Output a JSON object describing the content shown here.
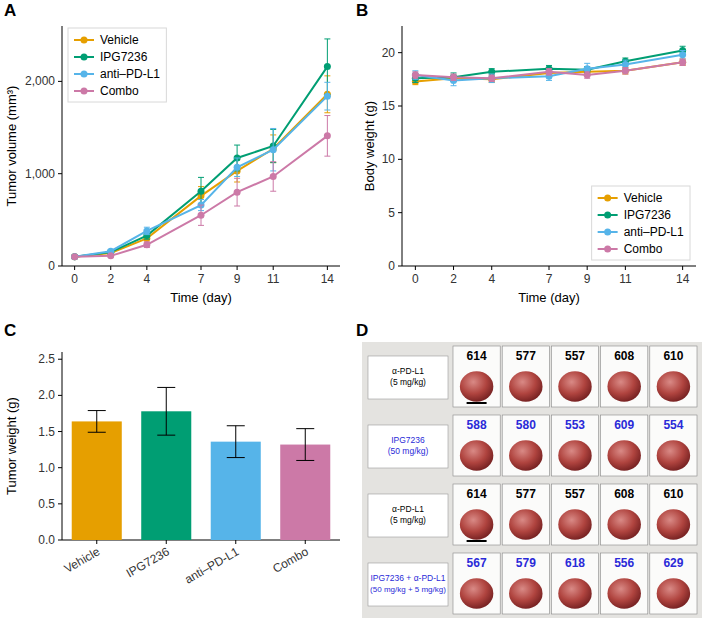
{
  "chart_data": [
    {
      "panel": "A",
      "type": "line",
      "x_label": "Time (day)",
      "y_label": "Tumor volume (mm³)",
      "x": [
        0,
        2,
        4,
        7,
        9,
        11,
        14
      ],
      "xlim": [
        -0.7,
        14.7
      ],
      "xticks": [
        0,
        2,
        4,
        7,
        9,
        11,
        14
      ],
      "ylim": [
        0,
        2600
      ],
      "yticks": [
        0,
        {
          "value": 1000,
          "label": "1,000"
        },
        {
          "value": 2000,
          "label": "2,000"
        }
      ],
      "legend": "top-left",
      "marker": "circle",
      "series": [
        {
          "name": "Vehicle",
          "color": "#e69f00",
          "values": [
            100,
            140,
            300,
            760,
            1030,
            1270,
            1860
          ],
          "errors": [
            10,
            20,
            40,
            100,
            120,
            150,
            200
          ]
        },
        {
          "name": "IPG7236",
          "color": "#009e73",
          "values": [
            100,
            150,
            330,
            810,
            1170,
            1300,
            2160
          ],
          "errors": [
            10,
            20,
            40,
            150,
            140,
            180,
            300
          ]
        },
        {
          "name": "anti–PD-L1",
          "color": "#56b4e9",
          "values": [
            100,
            160,
            380,
            660,
            1070,
            1260,
            1840
          ],
          "errors": [
            10,
            20,
            40,
            60,
            100,
            230,
            150
          ]
        },
        {
          "name": "Combo",
          "color": "#cc79a7",
          "values": [
            100,
            110,
            230,
            550,
            800,
            970,
            1410
          ],
          "errors": [
            10,
            15,
            30,
            110,
            150,
            160,
            220
          ]
        }
      ]
    },
    {
      "panel": "B",
      "type": "line",
      "x_label": "Time (day)",
      "y_label": "Body weight (g)",
      "x": [
        0,
        2,
        4,
        7,
        9,
        11,
        14
      ],
      "xlim": [
        -0.7,
        14.7
      ],
      "xticks": [
        0,
        2,
        4,
        7,
        9,
        11,
        14
      ],
      "ylim": [
        0,
        22.5
      ],
      "yticks": [
        0,
        5,
        10,
        15,
        20
      ],
      "legend": "bottom-right",
      "marker": "circle",
      "series": [
        {
          "name": "Vehicle",
          "color": "#e69f00",
          "values": [
            17.3,
            17.6,
            17.5,
            18.1,
            18.2,
            18.3,
            19.1
          ],
          "errors": [
            0.3,
            0.3,
            0.3,
            0.3,
            0.3,
            0.3,
            0.3
          ]
        },
        {
          "name": "IPG7236",
          "color": "#009e73",
          "values": [
            17.6,
            17.7,
            18.2,
            18.5,
            18.4,
            19.2,
            20.2
          ],
          "errors": [
            0.4,
            0.4,
            0.3,
            0.3,
            0.3,
            0.3,
            0.4
          ]
        },
        {
          "name": "anti–PD-L1",
          "color": "#56b4e9",
          "values": [
            17.9,
            17.4,
            17.6,
            17.8,
            18.5,
            18.9,
            19.8
          ],
          "errors": [
            0.4,
            0.5,
            0.4,
            0.4,
            0.5,
            0.4,
            0.4
          ]
        },
        {
          "name": "Combo",
          "color": "#cc79a7",
          "values": [
            17.9,
            17.7,
            17.6,
            18.2,
            17.9,
            18.3,
            19.1
          ],
          "errors": [
            0.3,
            0.3,
            0.3,
            0.3,
            0.3,
            0.3,
            0.3
          ]
        }
      ]
    },
    {
      "panel": "C",
      "type": "bar",
      "y_label": "Tumor weight (g)",
      "categories": [
        "Vehicle",
        "IPG7236",
        "anti–PD-L1",
        "Combo"
      ],
      "values": [
        1.64,
        1.78,
        1.36,
        1.32
      ],
      "errors": [
        0.15,
        0.33,
        0.22,
        0.22
      ],
      "colors": [
        "#e69f00",
        "#009e73",
        "#56b4e9",
        "#cc79a7"
      ],
      "ylim": [
        0,
        2.6
      ],
      "yticks": [
        {
          "value": 0,
          "label": "0.0"
        },
        {
          "value": 0.5,
          "label": "0.5"
        },
        {
          "value": 1,
          "label": "1.0"
        },
        {
          "value": 1.5,
          "label": "1.5"
        },
        {
          "value": 2,
          "label": "2.0"
        },
        {
          "value": 2.5,
          "label": "2.5"
        }
      ]
    }
  ],
  "photo_panel": {
    "panel": "D",
    "rows": [
      {
        "label": [
          "α-PD-L1",
          "(5 mg/kg)"
        ],
        "color": "#000000",
        "ids": [
          614,
          577,
          557,
          608,
          610
        ]
      },
      {
        "label": [
          "IPG7236",
          "(50 mg/kg)"
        ],
        "color": "#2a2ad8",
        "ids": [
          588,
          580,
          553,
          609,
          554
        ]
      },
      {
        "label": [
          "α-PD-L1",
          "(5 mg/kg)"
        ],
        "color": "#000000",
        "ids": [
          614,
          577,
          557,
          608,
          610
        ]
      },
      {
        "label": [
          "IPG7236 + α-PD-L1",
          "(50 mg/kg + 5 mg/kg)"
        ],
        "color": "#2a2ad8",
        "ids": [
          567,
          579,
          618,
          556,
          629
        ]
      }
    ]
  }
}
